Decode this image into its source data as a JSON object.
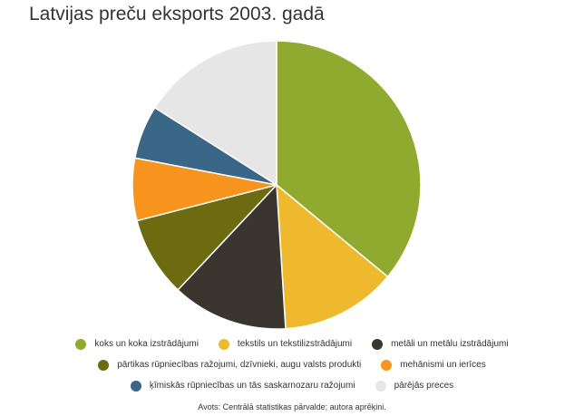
{
  "chart_data": {
    "type": "pie",
    "title": "Latvijas preču eksports 2003. gadā",
    "source": "Avots: Centrālā statistikas pārvalde; autora aprēķini.",
    "legend_position": "bottom",
    "categories": [
      "koks un koka izstrādājumi",
      "tekstils un tekstilizstrādājumi",
      "metāli un metālu izstrādājumi",
      "pārtikas rūpniecības ražojumi, dzīvnieki, augu valsts produkti",
      "mehānismi un ierīces",
      "ķīmiskās rūpniecības un tās saskarnozaru ražojumi",
      "pārējās preces"
    ],
    "values": [
      36.0,
      13.0,
      13.0,
      9.0,
      7.0,
      6.0,
      16.0
    ],
    "unit": "%",
    "colors": [
      "#8faa2f",
      "#efb92d",
      "#3b352f",
      "#6c6b10",
      "#f7941e",
      "#3a6688",
      "#e6e6e6"
    ]
  }
}
